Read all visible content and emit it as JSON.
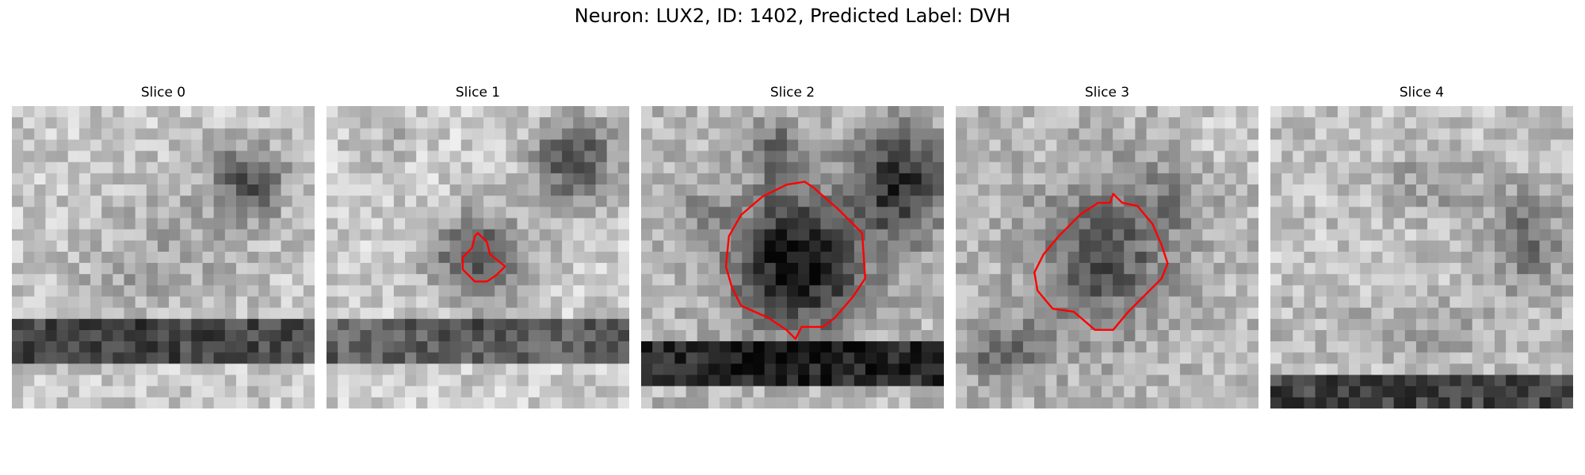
{
  "figure": {
    "title": "Neuron: LUX2, ID: 1402, Predicted Label: DVH",
    "contour_color": "#ff0000",
    "colormap": "gray"
  },
  "slices": [
    {
      "title": "Slice 0",
      "has_contour": false
    },
    {
      "title": "Slice 1",
      "has_contour": true
    },
    {
      "title": "Slice 2",
      "has_contour": true
    },
    {
      "title": "Slice 3",
      "has_contour": true
    },
    {
      "title": "Slice 4",
      "has_contour": false
    }
  ]
}
